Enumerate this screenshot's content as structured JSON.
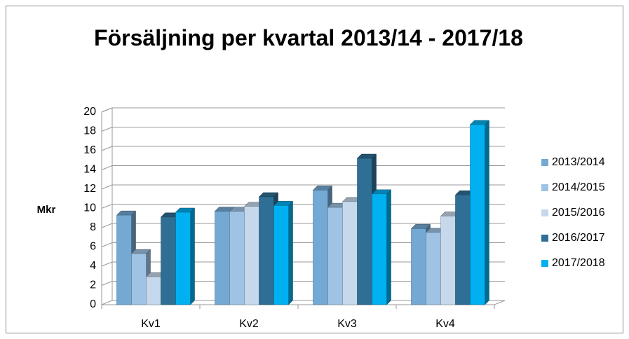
{
  "chart_data": {
    "type": "bar3d",
    "title": "Försäljning per kvartal 2013/14 - 2017/18",
    "y_label": "Mkr",
    "categories": [
      "Kv1",
      "Kv2",
      "Kv3",
      "Kv4"
    ],
    "series": [
      {
        "name": "2013/2014",
        "color": "#74a9d4",
        "values": [
          9.3,
          9.7,
          11.9,
          7.9
        ]
      },
      {
        "name": "2014/2015",
        "color": "#9fc3e4",
        "values": [
          5.3,
          9.7,
          10.1,
          7.5
        ]
      },
      {
        "name": "2015/2016",
        "color": "#c6d9ec",
        "values": [
          2.9,
          10.2,
          10.7,
          9.2
        ]
      },
      {
        "name": "2016/2017",
        "color": "#2f6f95",
        "values": [
          9.1,
          11.2,
          15.2,
          11.4
        ]
      },
      {
        "name": "2017/2018",
        "color": "#00b0f0",
        "values": [
          9.6,
          10.3,
          11.5,
          18.7
        ]
      }
    ],
    "ylim": [
      0,
      20
    ],
    "yticks": [
      0,
      2,
      4,
      6,
      8,
      10,
      12,
      14,
      16,
      18,
      20
    ],
    "grid": true,
    "legend": "right"
  }
}
